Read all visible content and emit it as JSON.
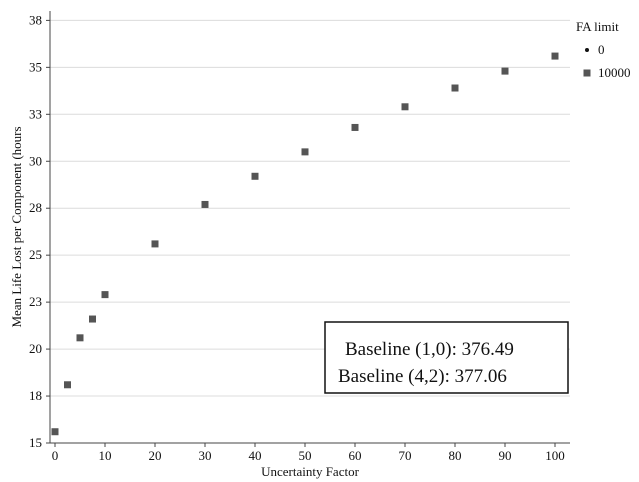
{
  "chart_data": {
    "type": "scatter",
    "xlabel": "Uncertainty Factor",
    "ylabel": "Mean Life Lost per Component (hours",
    "xlim": [
      -1,
      103
    ],
    "ylim": [
      15,
      38
    ],
    "x_ticks": [
      0,
      10,
      20,
      30,
      40,
      50,
      60,
      70,
      80,
      90,
      100
    ],
    "x_tick_labels": [
      "0",
      "10",
      "20",
      "30",
      "40",
      "50",
      "60",
      "70",
      "80",
      "90",
      "100"
    ],
    "y_ticks": [
      15,
      17.5,
      20,
      22.5,
      25,
      27.5,
      30,
      32.5,
      35,
      37.5
    ],
    "y_tick_labels": [
      "15",
      "18",
      "20",
      "23",
      "25",
      "28",
      "30",
      "33",
      "35",
      "38"
    ],
    "grid": "horizontal",
    "legend": {
      "title": "FA limit",
      "placement": "right-outside-top"
    },
    "series": [
      {
        "name": "0",
        "marker": "circle",
        "color": "#444444",
        "x": [
          0,
          2.5,
          5,
          7.5,
          10,
          20,
          30,
          40,
          50,
          60,
          70,
          80,
          90,
          100
        ],
        "y": [
          15.6,
          18.1,
          20.6,
          21.6,
          22.9,
          25.6,
          27.7,
          29.2,
          30.5,
          31.8,
          32.9,
          33.9,
          34.8,
          35.6
        ]
      },
      {
        "name": "10000",
        "marker": "square",
        "color": "#555555",
        "x": [
          0,
          2.5,
          5,
          7.5,
          10,
          20,
          30,
          40,
          50,
          60,
          70,
          80,
          90,
          100
        ],
        "y": [
          15.6,
          18.1,
          20.6,
          21.6,
          22.9,
          25.6,
          27.7,
          29.2,
          30.5,
          31.8,
          32.9,
          33.9,
          34.8,
          35.6
        ]
      }
    ],
    "annotations": [
      "Baseline (1,0): 376.49",
      "Baseline (4,2): 377.06"
    ]
  }
}
